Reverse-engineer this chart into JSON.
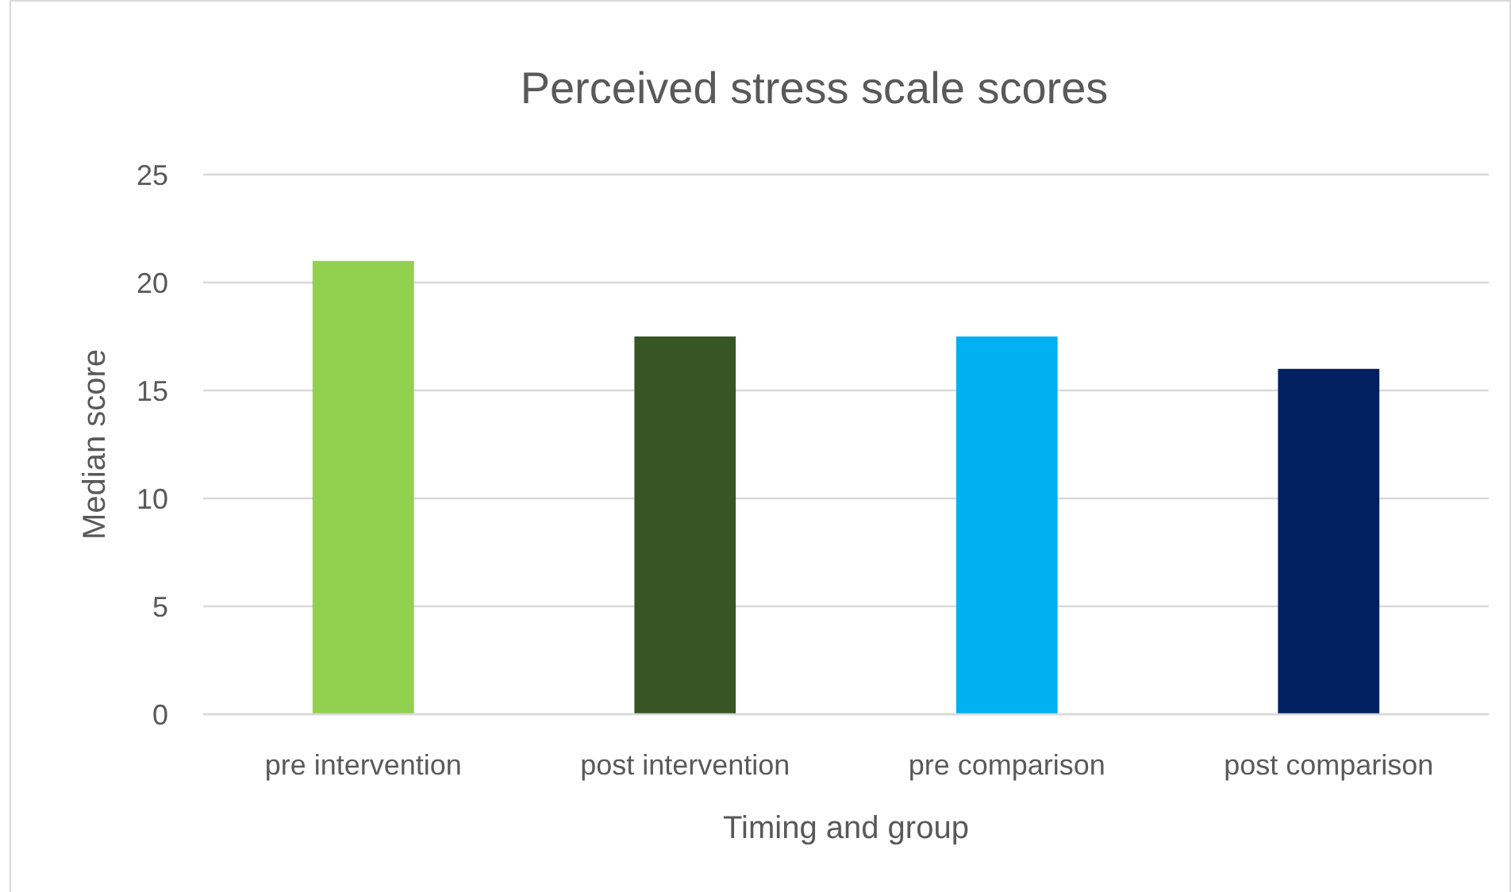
{
  "chart_data": {
    "type": "bar",
    "title": "Perceived stress scale scores",
    "xlabel": "Timing and group",
    "ylabel": "Median score",
    "categories": [
      "pre intervention",
      "post intervention",
      "pre comparison",
      "post comparison"
    ],
    "values": [
      21,
      17.5,
      17.5,
      16
    ],
    "colors": [
      "#92d050",
      "#375623",
      "#00b0f0",
      "#002060"
    ],
    "ylim": [
      0,
      25
    ],
    "yticks": [
      0,
      5,
      10,
      15,
      20,
      25
    ],
    "grid": "y"
  }
}
